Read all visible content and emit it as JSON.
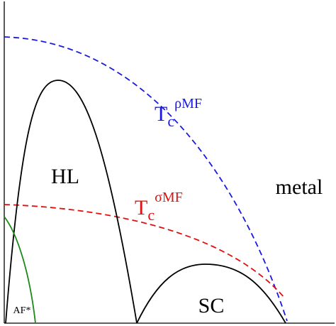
{
  "regions": [
    {
      "label": "HL"
    },
    {
      "label": "metal"
    },
    {
      "label": "SC"
    },
    {
      "label": "AF*"
    }
  ],
  "curves": [
    {
      "symbol": "T",
      "subscript": "c",
      "superscript": "ρMF"
    },
    {
      "symbol": "T",
      "subscript": "c",
      "superscript": "σMF"
    }
  ]
}
